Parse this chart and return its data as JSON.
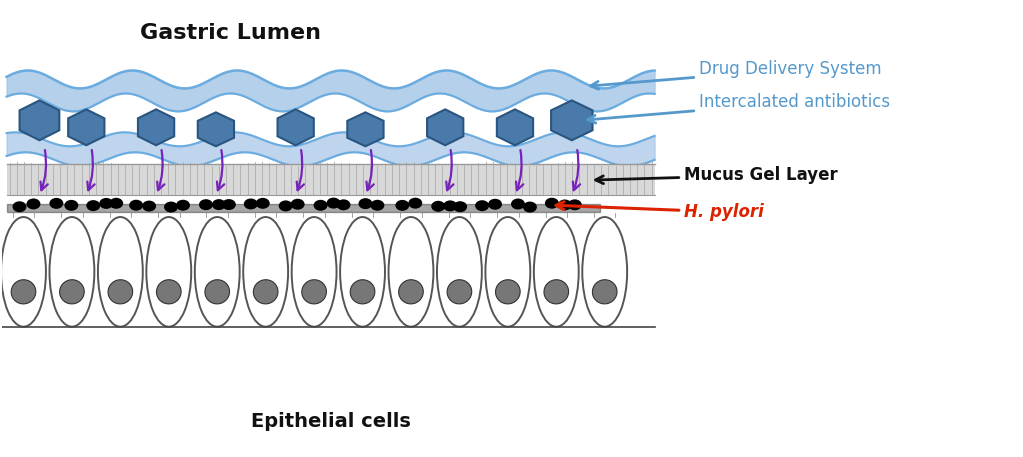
{
  "title_top": "Gastric Lumen",
  "title_bottom": "Epithelial cells",
  "label_drug": "Drug Delivery System",
  "label_antibiotics": "Intercalated antibiotics",
  "label_mucus": "Mucus Gel Layer",
  "label_hpylori": "H. pylori",
  "bg_color": "#ffffff",
  "wave_color_fill": "#a8c8e8",
  "wave_color_edge": "#6aabe0",
  "hexagon_color": "#4a7aaa",
  "hexagon_edge": "#2a5580",
  "arrow_color_purple": "#7722bb",
  "mucus_fill": "#d8d8d8",
  "mucus_stripe": "#b0b0b0",
  "hpylori_color": "#111111",
  "cell_edge": "#555555",
  "cell_fill": "#ffffff",
  "nucleus_fill": "#777777",
  "nucleus_edge": "#333333",
  "label_color_blue": "#5599cc",
  "label_color_black": "#111111",
  "label_color_red": "#dd2200",
  "figw": 10.23,
  "figh": 4.57,
  "dpi": 100
}
